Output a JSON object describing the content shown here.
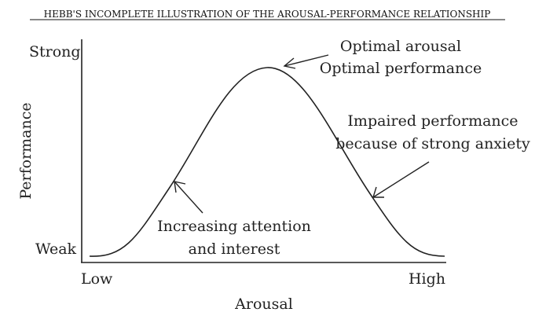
{
  "title": "HEBB'S INCOMPLETE ILLUSTRATION OF THE AROUSAL-PERFORMANCE RELATIONSHIP",
  "axes": {
    "y_label": "Performance",
    "y_high": "Strong",
    "y_low": "Weak",
    "x_label": "Arousal",
    "x_low": "Low",
    "x_high": "High"
  },
  "annotations": {
    "peak_line1": "Optimal arousal",
    "peak_line2": "Optimal performance",
    "right_line1": "Impaired performance",
    "right_line2": "because of strong anxiety",
    "left_line1": "Increasing attention",
    "left_line2": "and interest"
  },
  "colors": {
    "ink": "#222222",
    "background": "#ffffff"
  }
}
